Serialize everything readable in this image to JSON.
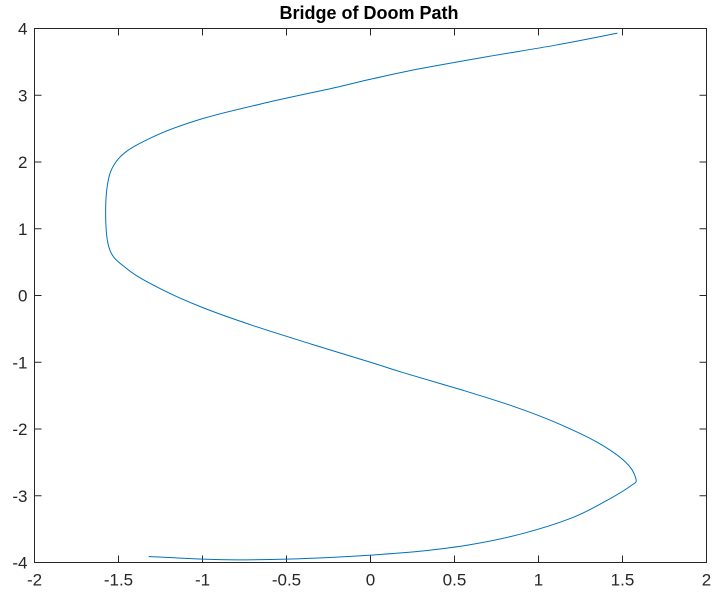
{
  "chart_data": {
    "type": "line",
    "title": "Bridge of Doom Path",
    "xlabel": "",
    "ylabel": "",
    "xlim": [
      -2,
      2
    ],
    "ylim": [
      -4,
      4
    ],
    "xticks": [
      -2,
      -1.5,
      -1,
      -0.5,
      0,
      0.5,
      1,
      1.5,
      2
    ],
    "xtick_labels": [
      "-2",
      "-1.5",
      "-1",
      "-0.5",
      "0",
      "0.5",
      "1",
      "1.5",
      "2"
    ],
    "yticks": [
      -4,
      -3,
      -2,
      -1,
      0,
      1,
      2,
      3,
      4
    ],
    "ytick_labels": [
      "-4",
      "-3",
      "-2",
      "-1",
      "0",
      "1",
      "2",
      "3",
      "4"
    ],
    "grid": false,
    "box": true,
    "series": [
      {
        "color": "#0072bd",
        "x": [
          -1.32,
          -1.0,
          -0.8,
          -0.5,
          -0.2,
          0.0,
          0.3,
          0.6,
          0.9,
          1.2,
          1.4,
          1.55,
          1.58,
          1.52,
          1.35,
          1.1,
          0.85,
          0.55,
          0.2,
          0.0,
          -0.35,
          -0.7,
          -1.0,
          -1.25,
          -1.45,
          -1.56,
          -1.57,
          -1.5,
          -1.3,
          -1.0,
          -0.6,
          -0.2,
          0.0,
          0.3,
          0.7,
          1.1,
          1.47
        ],
        "y": [
          -3.91,
          -3.95,
          -3.96,
          -3.95,
          -3.92,
          -3.89,
          -3.83,
          -3.73,
          -3.57,
          -3.33,
          -3.08,
          -2.85,
          -2.75,
          -2.5,
          -2.2,
          -1.9,
          -1.66,
          -1.42,
          -1.16,
          -1.0,
          -0.73,
          -0.45,
          -0.18,
          0.1,
          0.4,
          0.75,
          1.58,
          2.05,
          2.37,
          2.65,
          2.9,
          3.12,
          3.24,
          3.4,
          3.58,
          3.75,
          3.93
        ]
      }
    ]
  }
}
